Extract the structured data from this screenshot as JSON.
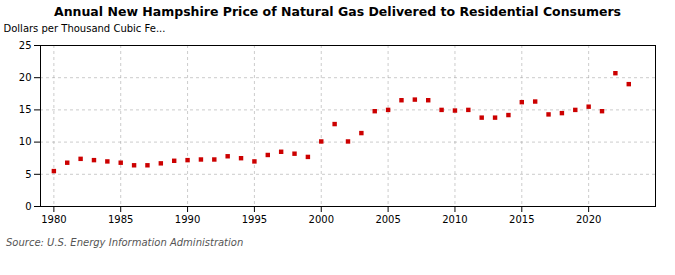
{
  "chart_data": {
    "type": "scatter",
    "title": "Annual New Hampshire Price of Natural Gas Delivered to Residential Consumers",
    "ylabel": "Dollars per Thousand Cubic Fe...",
    "source": "Source: U.S. Energy Information Administration",
    "x": [
      1980,
      1981,
      1982,
      1983,
      1984,
      1985,
      1986,
      1987,
      1988,
      1989,
      1990,
      1991,
      1992,
      1993,
      1994,
      1995,
      1996,
      1997,
      1998,
      1999,
      2000,
      2001,
      2002,
      2003,
      2004,
      2005,
      2006,
      2007,
      2008,
      2009,
      2010,
      2011,
      2012,
      2013,
      2014,
      2015,
      2016,
      2017,
      2018,
      2019,
      2020,
      2021,
      2022,
      2023
    ],
    "values": [
      5.5,
      6.8,
      7.4,
      7.2,
      7.0,
      6.8,
      6.4,
      6.4,
      6.7,
      7.1,
      7.2,
      7.3,
      7.3,
      7.8,
      7.5,
      7.0,
      8.0,
      8.5,
      8.2,
      7.7,
      10.1,
      12.8,
      10.1,
      11.4,
      14.8,
      15.0,
      16.5,
      16.6,
      16.5,
      15.0,
      14.9,
      15.0,
      13.8,
      13.8,
      14.2,
      16.2,
      16.3,
      14.3,
      14.5,
      15.0,
      15.5,
      14.8,
      20.7,
      19.0
    ],
    "xlim": [
      1979,
      2025
    ],
    "ylim": [
      0,
      25
    ],
    "xticks": [
      1980,
      1985,
      1990,
      1995,
      2000,
      2005,
      2010,
      2015,
      2020
    ],
    "yticks": [
      0,
      5,
      10,
      15,
      20,
      25
    ],
    "grid": true,
    "color": "#cc0000",
    "marker": "square"
  }
}
